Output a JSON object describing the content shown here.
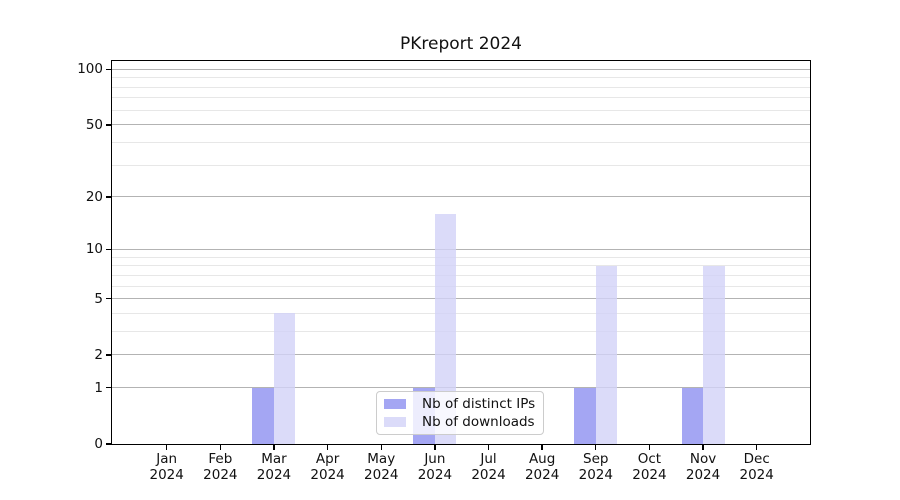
{
  "chart_data": {
    "type": "bar",
    "title": "PKreport 2024",
    "x_tick_labels": [
      [
        "Jan",
        "2024"
      ],
      [
        "Feb",
        "2024"
      ],
      [
        "Mar",
        "2024"
      ],
      [
        "Apr",
        "2024"
      ],
      [
        "May",
        "2024"
      ],
      [
        "Jun",
        "2024"
      ],
      [
        "Jul",
        "2024"
      ],
      [
        "Aug",
        "2024"
      ],
      [
        "Sep",
        "2024"
      ],
      [
        "Oct",
        "2024"
      ],
      [
        "Nov",
        "2024"
      ],
      [
        "Dec",
        "2024"
      ]
    ],
    "series": [
      {
        "name": "Nb of distinct IPs",
        "color": "#8d90f0",
        "values": [
          0,
          0,
          1,
          0,
          0,
          1,
          0,
          0,
          1,
          0,
          1,
          0
        ]
      },
      {
        "name": "Nb of downloads",
        "color": "#d2d2f7",
        "values": [
          0,
          0,
          4,
          0,
          0,
          16,
          0,
          0,
          8,
          0,
          8,
          0
        ]
      }
    ],
    "y_scale": "log1p",
    "ylim": [
      0,
      111
    ],
    "y_major_ticks": [
      0,
      1,
      2,
      5,
      10,
      20,
      50,
      100
    ],
    "y_minor_gridlines": [
      3,
      4,
      6,
      7,
      8,
      9,
      30,
      40,
      60,
      70,
      80,
      90
    ],
    "grid": true,
    "legend_position": "inside-bottom-center"
  },
  "colors": {
    "major_grid": "#b3b3b3",
    "minor_grid": "#e7e7e7",
    "axis": "#000000",
    "legend_border": "#cccccc",
    "background": "#ffffff",
    "text": "#111111"
  }
}
